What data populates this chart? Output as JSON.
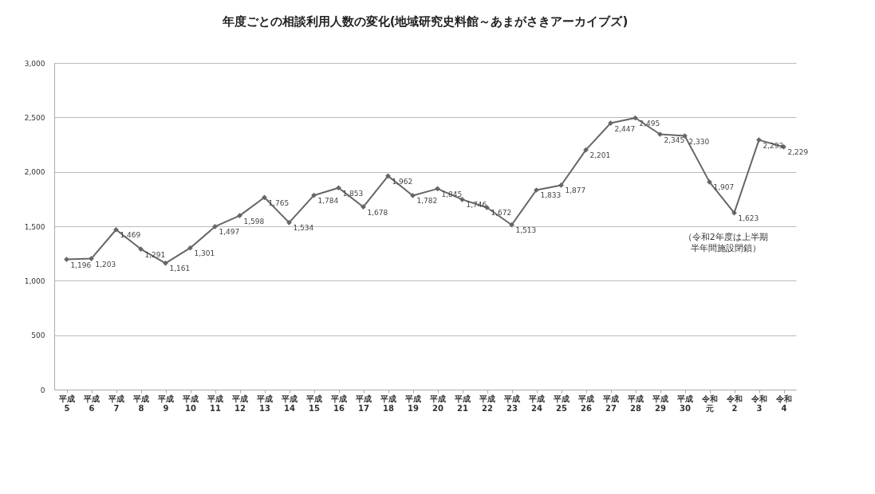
{
  "chart_data": {
    "type": "line",
    "title": "年度ごとの相談利用人数の変化(地域研究史料館～あまがさきアーカイブズ)",
    "categories": [
      "平成5",
      "平成6",
      "平成7",
      "平成8",
      "平成9",
      "平成10",
      "平成11",
      "平成12",
      "平成13",
      "平成14",
      "平成15",
      "平成16",
      "平成17",
      "平成18",
      "平成19",
      "平成20",
      "平成21",
      "平成22",
      "平成23",
      "平成24",
      "平成25",
      "平成26",
      "平成27",
      "平成28",
      "平成29",
      "平成30",
      "令和元",
      "令和2",
      "令和3",
      "令和4"
    ],
    "series": [
      {
        "color": "#666666",
        "values": [
          1196,
          1203,
          1469,
          1291,
          1161,
          1301,
          1497,
          1598,
          1765,
          1534,
          1784,
          1853,
          1678,
          1962,
          1782,
          1845,
          1746,
          1672,
          1513,
          1833,
          1877,
          2201,
          2447,
          2495,
          2345,
          2330,
          1907,
          1623,
          2293,
          2229
        ],
        "value_labels": [
          "1,196",
          "1,203",
          "1,469",
          "1,291",
          "1,161",
          "1,301",
          "1,497",
          "1,598",
          "1,765",
          "1,534",
          "1,784",
          "1,853",
          "1,678",
          "1,962",
          "1,782",
          "1,845",
          "1,746",
          "1,672",
          "1,513",
          "1,833",
          "1,877",
          "2,201",
          "2,447",
          "2,495",
          "2,345",
          "2,330",
          "1,907",
          "1,623",
          "2,293",
          "2,229"
        ]
      }
    ],
    "ylim": [
      0,
      3000
    ],
    "yticks": [
      0,
      {
        "value": 500,
        "label": "500"
      },
      {
        "value": 1000,
        "label": "1,000"
      },
      {
        "value": 1500,
        "label": "1,500"
      },
      {
        "value": 2000,
        "label": "2,000"
      },
      {
        "value": 2500,
        "label": "2,500"
      },
      {
        "value": 3000,
        "label": "3,000"
      }
    ],
    "grid": "y",
    "marker": "diamond",
    "line_style": "solid",
    "annotations": [
      "（令和2年度は上半期半年間施設閉鎖）"
    ]
  }
}
